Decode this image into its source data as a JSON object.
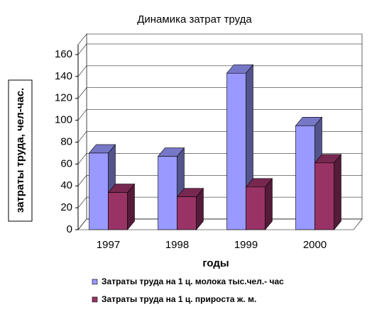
{
  "chart_data": {
    "type": "bar3d",
    "title": "Динамика затрат труда",
    "x_label": "годы",
    "y_label": "затраты труда, чел-час.",
    "categories": [
      "1997",
      "1998",
      "1999",
      "2000"
    ],
    "series": [
      {
        "name": "Затраты труда на 1 ц. молока тыс.чел.- час",
        "color": "#9999ff",
        "values": [
          70,
          67,
          143,
          95
        ]
      },
      {
        "name": "Затраты труда на 1 ц. прироста ж. м.",
        "color": "#993366",
        "values": [
          34,
          30,
          39,
          61
        ]
      }
    ],
    "ylim": [
      0,
      160
    ],
    "yticks": [
      0,
      20,
      40,
      60,
      80,
      100,
      120,
      140,
      160
    ],
    "grid": true
  }
}
